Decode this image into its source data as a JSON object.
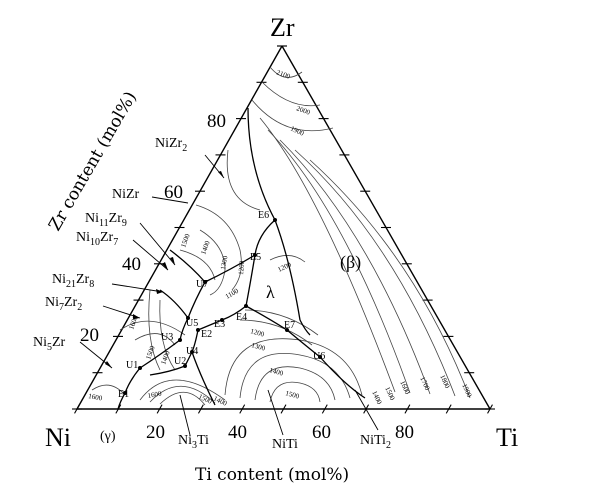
{
  "corners": {
    "top": "Zr",
    "left": "Ni",
    "right": "Ti"
  },
  "axes": {
    "zr_label": "Zr content (mol%)",
    "ti_label": "Ti content (mol%)",
    "zr_ticks": [
      "20",
      "40",
      "60",
      "80"
    ],
    "ti_ticks": [
      "20",
      "40",
      "60",
      "80"
    ]
  },
  "regions": {
    "beta": "(β)",
    "lambda": "λ",
    "gamma": "(γ)"
  },
  "phases": {
    "NiZr2": {
      "base": "NiZr",
      "sub": "2"
    },
    "NiZr": {
      "base": "NiZr",
      "sub": ""
    },
    "Ni11Zr9": {
      "a": "Ni",
      "asub": "11",
      "b": "Zr",
      "bsub": "9"
    },
    "Ni10Zr7": {
      "a": "Ni",
      "asub": "10",
      "b": "Zr",
      "bsub": "7"
    },
    "Ni21Zr8": {
      "a": "Ni",
      "asub": "21",
      "b": "Zr",
      "bsub": "8"
    },
    "Ni7Zr2": {
      "a": "Ni",
      "asub": "7",
      "b": "Zr",
      "bsub": "2"
    },
    "Ni5Zr": {
      "a": "Ni",
      "asub": "5",
      "b": "Zr",
      "bsub": ""
    },
    "Ni3Ti": {
      "a": "Ni",
      "asub": "3",
      "b": "Ti",
      "bsub": ""
    },
    "NiTi": {
      "base": "NiTi",
      "sub": ""
    },
    "NiTi2": {
      "base": "NiTi",
      "sub": "2"
    }
  },
  "points": {
    "E1": "E1",
    "E2": "E2",
    "E3": "E3",
    "E4": "E4",
    "E5": "E5",
    "E6": "E6",
    "E7": "E7",
    "U1": "U1",
    "U2": "U2",
    "U3": "U3",
    "U4": "U4",
    "U5": "U5",
    "U6": "U6",
    "U7": "U7"
  },
  "isotherms": {
    "t2100": "2100",
    "t2000": "2000",
    "t1900": "1900",
    "t1800": "1800",
    "t1700": "1700",
    "t1600": "1600",
    "t1500": "1500",
    "t1400": "1400",
    "t1300": "1300",
    "t1200": "1200",
    "t1100": "1100"
  }
}
